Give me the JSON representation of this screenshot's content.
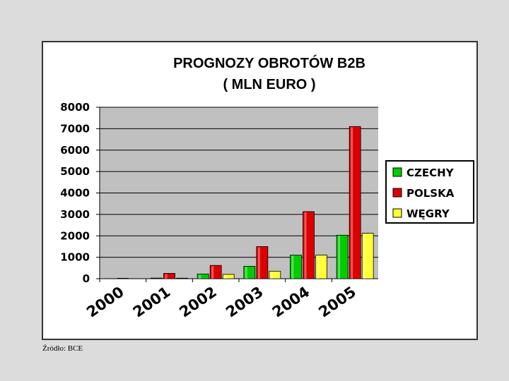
{
  "chart_data": {
    "type": "bar",
    "title_lines": [
      "PROGNOZY OBROTÓW B2B",
      "( MLN EURO )"
    ],
    "categories": [
      "2000",
      "2001",
      "2002",
      "2003",
      "2004",
      "2005"
    ],
    "series": [
      {
        "name": "CZECHY",
        "color": "#00cc00",
        "values": [
          5,
          30,
          220,
          580,
          1100,
          2030
        ]
      },
      {
        "name": "POLSKA",
        "color": "#dd0000",
        "values": [
          20,
          250,
          620,
          1500,
          3130,
          7100
        ]
      },
      {
        "name": "WĘGRY",
        "color": "#ffff33",
        "values": [
          5,
          25,
          200,
          350,
          1100,
          2120
        ]
      }
    ],
    "ylim": [
      0,
      8000
    ],
    "yticks": [
      "0",
      "1000",
      "2000",
      "3000",
      "4000",
      "5000",
      "6000",
      "7000",
      "8000"
    ],
    "grid": true,
    "legend_position": "right"
  },
  "source_note": "Źródło: BCE"
}
